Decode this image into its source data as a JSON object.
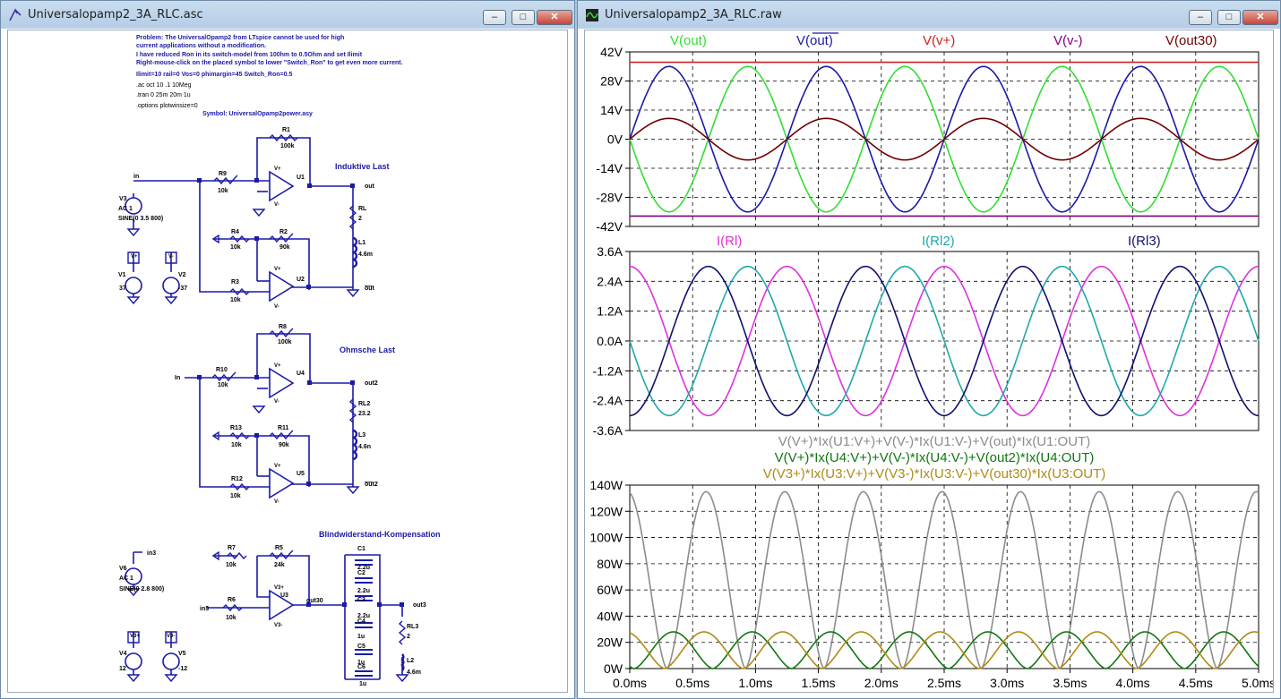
{
  "schematic": {
    "title": "Universalopamp2_3A_RLC.asc",
    "notes": [
      "Problem: The UniversalOpamp2 from LTspice cannot be used for high",
      "current applications without a modification.",
      "I have reduced Ron in its switch-model from 100hm to 0.5Ohm and set Ilimit",
      "Right-mouse-click on the placed symbol to lower \"Switch_Ron\" to get even more current."
    ],
    "param_line": "Ilimit=10 rail=0 Vos=0 phimargin=45 Switch_Ron=0.5",
    "directives": [
      ".ac oct 10 .1 10Meg",
      ".tran 0 25m 20m 1u",
      ".options plotwinsize=0"
    ],
    "symbol_label": "Symbol: UniversalOpamp2power.asy",
    "sections": {
      "inductive": "Induktive Last",
      "ohmic": "Ohmsche Last",
      "compensation": "Blindwiderstand-Kompensation"
    },
    "parts": {
      "R1": {
        "name": "R1",
        "value": "100k"
      },
      "R9": {
        "name": "R9",
        "value": "10k"
      },
      "R4": {
        "name": "R4",
        "value": "10k"
      },
      "R2": {
        "name": "R2",
        "value": "90k"
      },
      "R3": {
        "name": "R3",
        "value": "10k"
      },
      "RL": {
        "name": "RL",
        "value": "2"
      },
      "L1": {
        "name": "L1",
        "value": "4.6m"
      },
      "U1": {
        "name": "U1"
      },
      "U2": {
        "name": "U2"
      },
      "V3": {
        "name": "V3",
        "ac": "AC 1",
        "sine": "SINE(0 3.5 800)"
      },
      "V1": {
        "name": "V1",
        "value": "37"
      },
      "V2": {
        "name": "V2",
        "value": "-37"
      },
      "R8": {
        "name": "R8",
        "value": "100k"
      },
      "R10": {
        "name": "R10",
        "value": "10k"
      },
      "R13": {
        "name": "R13",
        "value": "10k"
      },
      "R11": {
        "name": "R11",
        "value": "90k"
      },
      "R12": {
        "name": "R12",
        "value": "10k"
      },
      "RL2": {
        "name": "RL2",
        "value": "23.2"
      },
      "L3": {
        "name": "L3",
        "value": "4.6n"
      },
      "U4": {
        "name": "U4"
      },
      "U5": {
        "name": "U5"
      },
      "R7": {
        "name": "R7",
        "value": "10k"
      },
      "R5": {
        "name": "R5",
        "value": "24k"
      },
      "R6": {
        "name": "R6",
        "value": "10k"
      },
      "U3": {
        "name": "U3"
      },
      "V6": {
        "name": "V6",
        "ac": "AC 1",
        "sine": "SINE(0 2.8 800)"
      },
      "V4": {
        "name": "V4",
        "value": "12"
      },
      "V5": {
        "name": "V5",
        "value": "-12"
      },
      "C1": {
        "name": "C1",
        "value": "2.2u"
      },
      "C2": {
        "name": "C2",
        "value": "2.2u"
      },
      "C3": {
        "name": "C3",
        "value": "2.2u"
      },
      "C4": {
        "name": "C4",
        "value": "1u"
      },
      "C5": {
        "name": "C5",
        "value": "1u"
      },
      "C6": {
        "name": "C6",
        "value": "1u"
      },
      "RL3": {
        "name": "RL3",
        "value": "2"
      },
      "L2": {
        "name": "L2",
        "value": "4.6m"
      }
    },
    "nets": {
      "in": "in",
      "out": "out",
      "outbar": "out",
      "in_b": "In",
      "out2": "out2",
      "out2bar": "out2",
      "in3": "in3",
      "in3b": "in3",
      "out30": "out30",
      "out3": "out3"
    },
    "pin_v_plus": "V+",
    "pin_v_minus": "V-",
    "pin_v3_plus": "V3+",
    "pin_v3_minus": "V3-"
  },
  "waveform": {
    "title": "Universalopamp2_3A_RLC.raw",
    "xaxis_ticks": [
      "0.0ms",
      "0.5ms",
      "1.0ms",
      "1.5ms",
      "2.0ms",
      "2.5ms",
      "3.0ms",
      "3.5ms",
      "4.0ms",
      "4.5ms",
      "5.0ms"
    ],
    "legend_colors": {
      "green": "#33dd33",
      "blue": "#1a1aa8",
      "red": "#cc2222",
      "purple": "#800080",
      "darkred": "#700000",
      "magenta": "#e030e0",
      "cyan": "#20a8a8",
      "navy": "#101070",
      "gray": "#8c8c8c",
      "dgreen": "#117711",
      "gold": "#b08a14"
    }
  },
  "chart_data": [
    {
      "type": "line",
      "xlabel": "",
      "ylabel": "",
      "xlim": [
        0,
        5
      ],
      "x_unit": "ms",
      "ylim": [
        -42,
        42
      ],
      "yticks": [
        "42V",
        "28V",
        "14V",
        "0V",
        "-14V",
        "-28V",
        "-42V"
      ],
      "grid": true,
      "series": [
        {
          "name": "V(out)",
          "color": "#33dd33",
          "kind": "sine",
          "amp": 35,
          "freq_khz": 0.8,
          "phase": 180
        },
        {
          "name": "V(out)",
          "overline": true,
          "color": "#1a1aa8",
          "kind": "sine",
          "amp": 35,
          "freq_khz": 0.8,
          "phase": 0
        },
        {
          "name": "V(v+)",
          "color": "#cc2222",
          "kind": "const",
          "value": 37
        },
        {
          "name": "V(v-)",
          "color": "#800080",
          "kind": "const",
          "value": -37
        },
        {
          "name": "V(out30)",
          "color": "#700000",
          "kind": "sine",
          "amp": 10,
          "freq_khz": 0.8,
          "phase": 0
        }
      ]
    },
    {
      "type": "line",
      "xlabel": "",
      "ylabel": "",
      "xlim": [
        0,
        5
      ],
      "x_unit": "ms",
      "ylim": [
        -3.6,
        3.6
      ],
      "yticks": [
        "3.6A",
        "2.4A",
        "1.2A",
        "0.0A",
        "-1.2A",
        "-2.4A",
        "-3.6A"
      ],
      "grid": true,
      "series": [
        {
          "name": "I(Rl)",
          "color": "#e030e0",
          "kind": "sine",
          "amp": 3.0,
          "freq_khz": 0.8,
          "phase": 90
        },
        {
          "name": "I(Rl2)",
          "color": "#20a8a8",
          "kind": "sine",
          "amp": 3.0,
          "freq_khz": 0.8,
          "phase": 180
        },
        {
          "name": "I(Rl3)",
          "color": "#101070",
          "kind": "sine",
          "amp": 3.0,
          "freq_khz": 0.8,
          "phase": -90
        }
      ]
    },
    {
      "type": "line",
      "xlabel": "",
      "ylabel": "",
      "xlim": [
        0,
        5
      ],
      "x_unit": "ms",
      "ylim": [
        0,
        140
      ],
      "yticks": [
        "140W",
        "120W",
        "100W",
        "80W",
        "60W",
        "40W",
        "20W",
        "0W"
      ],
      "grid": true,
      "series": [
        {
          "name": "V(V+)*Ix(U1:V+)+V(V-)*Ix(U1:V-)+V(out)*Ix(U1:OUT)",
          "color": "#8c8c8c",
          "kind": "power",
          "peak": 135,
          "freq_khz": 1.6,
          "phase": 95
        },
        {
          "name": "V(V+)*Ix(U4:V+)+V(V-)*Ix(U4:V-)+V(out2)*Ix(U4:OUT)",
          "color": "#117711",
          "kind": "power",
          "peak": 28,
          "freq_khz": 1.6,
          "phase": -10
        },
        {
          "name": "V(V3+)*Ix(U3:V+)+V(V3-)*Ix(U3:V-)+V(out30)*Ix(U3:OUT)",
          "color": "#b08a14",
          "kind": "power",
          "peak": 28,
          "freq_khz": 1.6,
          "phase": -80
        }
      ]
    }
  ]
}
